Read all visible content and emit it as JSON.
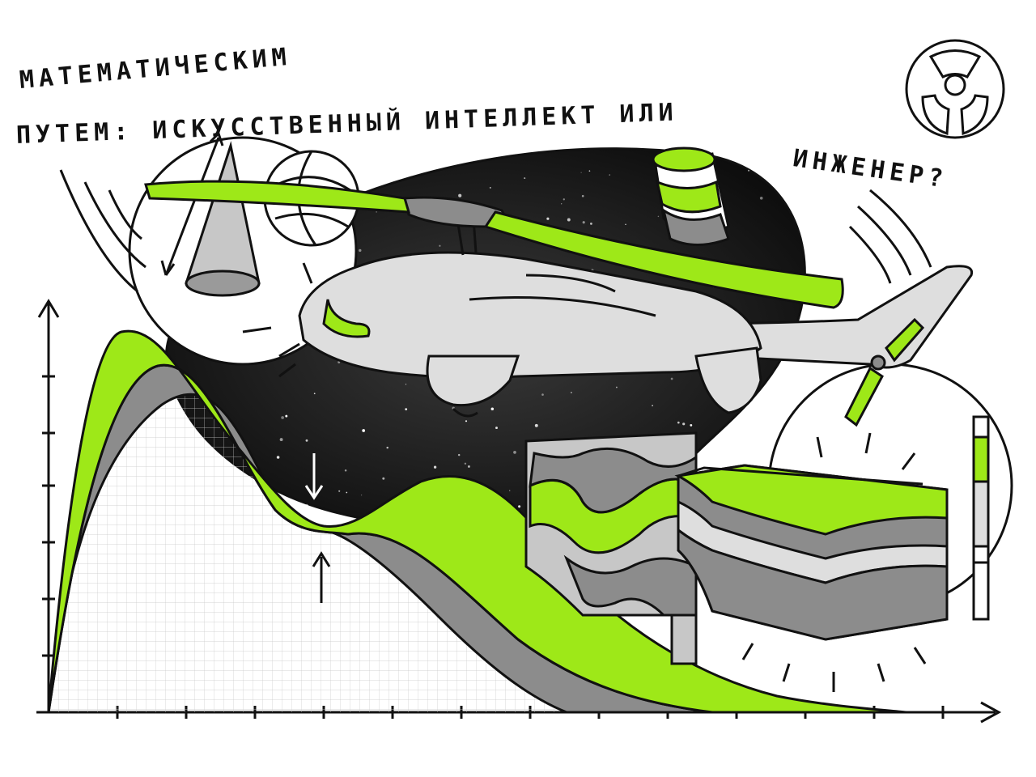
{
  "title": {
    "line1": "МАТЕМАТИЧЕСКИМ",
    "line2": "ПУТЕМ: ИСКУССТВЕННЫЙ ИНТЕЛЛЕКТ ИЛИ",
    "line3": "ИНЖЕНЕР?"
  },
  "colors": {
    "accent": "#9ee818",
    "ink": "#111111",
    "gray_dark": "#8c8c8c",
    "gray_mid": "#b9b9b9",
    "gray_light": "#dedede",
    "space": "#1a1a1a"
  },
  "icons": [
    "radiation-logo-icon",
    "helicopter-icon",
    "cone-icon",
    "sphere-icon",
    "rock-core-icon",
    "layered-block-icon",
    "measuring-rod-icon"
  ]
}
